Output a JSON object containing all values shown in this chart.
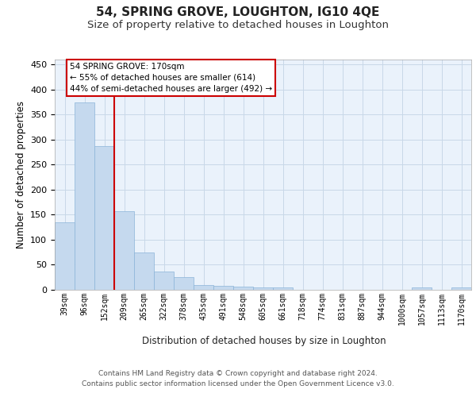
{
  "title": "54, SPRING GROVE, LOUGHTON, IG10 4QE",
  "subtitle": "Size of property relative to detached houses in Loughton",
  "xlabel": "Distribution of detached houses by size in Loughton",
  "ylabel": "Number of detached properties",
  "footer_line1": "Contains HM Land Registry data © Crown copyright and database right 2024.",
  "footer_line2": "Contains public sector information licensed under the Open Government Licence v3.0.",
  "categories": [
    "39sqm",
    "96sqm",
    "152sqm",
    "209sqm",
    "265sqm",
    "322sqm",
    "378sqm",
    "435sqm",
    "491sqm",
    "548sqm",
    "605sqm",
    "661sqm",
    "718sqm",
    "774sqm",
    "831sqm",
    "887sqm",
    "944sqm",
    "1000sqm",
    "1057sqm",
    "1113sqm",
    "1170sqm"
  ],
  "values": [
    135,
    375,
    287,
    157,
    75,
    37,
    25,
    10,
    8,
    7,
    5,
    4,
    0,
    0,
    0,
    0,
    0,
    0,
    4,
    0,
    4
  ],
  "bar_color": "#c5d9ee",
  "bar_edge_color": "#8ab4d8",
  "red_line_color": "#cc0000",
  "red_line_x": 2.5,
  "annotation_line1": "54 SPRING GROVE: 170sqm",
  "annotation_line2": "← 55% of detached houses are smaller (614)",
  "annotation_line3": "44% of semi-detached houses are larger (492) →",
  "annotation_box_facecolor": "#ffffff",
  "annotation_box_edgecolor": "#cc0000",
  "ylim": [
    0,
    460
  ],
  "yticks": [
    0,
    50,
    100,
    150,
    200,
    250,
    300,
    350,
    400,
    450
  ],
  "grid_color": "#c8d8e8",
  "bg_color": "#eaf2fb",
  "title_fontsize": 11,
  "subtitle_fontsize": 9.5,
  "axis_label_fontsize": 8.5,
  "tick_fontsize": 8,
  "xtick_fontsize": 7,
  "footer_fontsize": 6.5
}
